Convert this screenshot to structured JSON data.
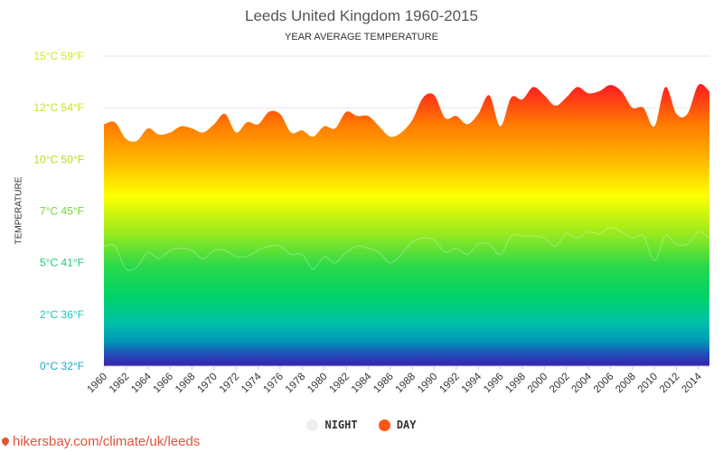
{
  "title": "Leeds United Kingdom 1960-2015",
  "subtitle": "YEAR AVERAGE TEMPERATURE",
  "source": "hikersbay.com/climate/uk/leeds",
  "chart_data": {
    "type": "area",
    "title": "Leeds United Kingdom 1960-2015",
    "subtitle": "YEAR AVERAGE TEMPERATURE",
    "ylabel": "TEMPERATURE",
    "xlabel": "",
    "ylim": [
      0,
      15
    ],
    "xlim": [
      1960,
      2015
    ],
    "grid": true,
    "legend_position": "bottom",
    "y_ticks": [
      {
        "value": 0,
        "label": "0°C 32°F",
        "color": "#1aa6c9"
      },
      {
        "value": 2.5,
        "label": "2°C 36°F",
        "color": "#19c6c2"
      },
      {
        "value": 5,
        "label": "5°C 41°F",
        "color": "#22c978"
      },
      {
        "value": 7.5,
        "label": "7°C 45°F",
        "color": "#6fd63a"
      },
      {
        "value": 10,
        "label": "10°C 50°F",
        "color": "#b4dc1f"
      },
      {
        "value": 12.5,
        "label": "12°C 54°F",
        "color": "#c9e11e"
      },
      {
        "value": 15,
        "label": "15°C 59°F",
        "color": "#d2e820"
      }
    ],
    "x_ticks": [
      1960,
      1962,
      1964,
      1966,
      1968,
      1970,
      1972,
      1974,
      1976,
      1978,
      1980,
      1982,
      1984,
      1986,
      1988,
      1990,
      1992,
      1994,
      1996,
      1998,
      2000,
      2002,
      2004,
      2006,
      2008,
      2010,
      2012,
      2014
    ],
    "x": [
      1960,
      1961,
      1962,
      1963,
      1964,
      1965,
      1966,
      1967,
      1968,
      1969,
      1970,
      1971,
      1972,
      1973,
      1974,
      1975,
      1976,
      1977,
      1978,
      1979,
      1980,
      1981,
      1982,
      1983,
      1984,
      1985,
      1986,
      1987,
      1988,
      1989,
      1990,
      1991,
      1992,
      1993,
      1994,
      1995,
      1996,
      1997,
      1998,
      1999,
      2000,
      2001,
      2002,
      2003,
      2004,
      2005,
      2006,
      2007,
      2008,
      2009,
      2010,
      2011,
      2012,
      2013,
      2014,
      2015
    ],
    "series": [
      {
        "name": "NIGHT",
        "color": "#eeeeee",
        "values": [
          5.8,
          5.8,
          4.7,
          4.8,
          5.5,
          5.2,
          5.6,
          5.7,
          5.6,
          5.2,
          5.6,
          5.6,
          5.3,
          5.3,
          5.6,
          5.8,
          5.8,
          5.4,
          5.4,
          4.7,
          5.3,
          5.0,
          5.5,
          5.8,
          5.7,
          5.5,
          5.0,
          5.4,
          6.0,
          6.2,
          6.1,
          5.5,
          5.7,
          5.4,
          5.9,
          5.9,
          5.4,
          6.3,
          6.3,
          6.3,
          6.2,
          5.8,
          6.4,
          6.2,
          6.5,
          6.4,
          6.7,
          6.5,
          6.2,
          6.3,
          5.1,
          6.3,
          5.9,
          5.9,
          6.5,
          6.2
        ]
      },
      {
        "name": "DAY",
        "color": "#ff5512",
        "values": [
          11.7,
          11.8,
          11.0,
          10.9,
          11.5,
          11.2,
          11.3,
          11.6,
          11.5,
          11.3,
          11.7,
          12.2,
          11.3,
          11.8,
          11.7,
          12.3,
          12.2,
          11.3,
          11.4,
          11.1,
          11.6,
          11.5,
          12.3,
          12.1,
          12.1,
          11.6,
          11.1,
          11.3,
          11.9,
          13.0,
          13.1,
          12.0,
          12.1,
          11.7,
          12.2,
          13.1,
          11.6,
          13.0,
          12.9,
          13.5,
          13.1,
          12.6,
          13.0,
          13.5,
          13.2,
          13.3,
          13.6,
          13.3,
          12.5,
          12.5,
          11.6,
          13.5,
          12.2,
          12.2,
          13.6,
          13.3
        ]
      }
    ]
  }
}
